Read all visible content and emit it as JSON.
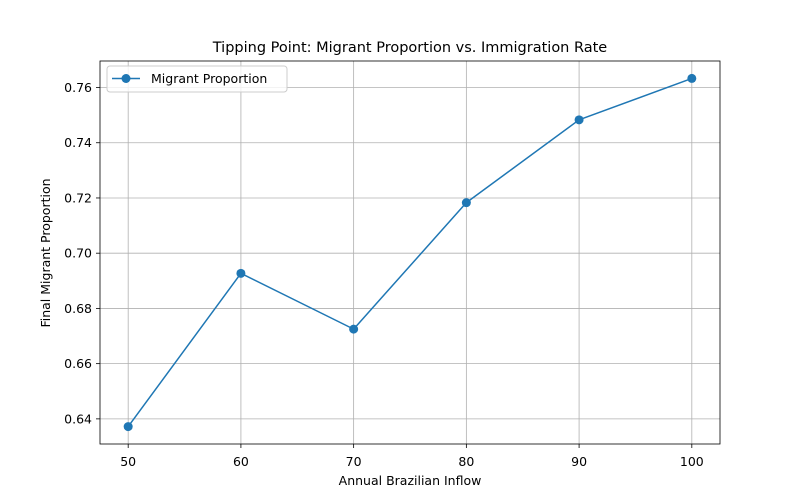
{
  "chart_data": {
    "type": "line",
    "title": "Tipping Point: Migrant Proportion vs. Immigration Rate",
    "xlabel": "Annual Brazilian Inflow",
    "ylabel": "Final Migrant Proportion",
    "x": [
      50,
      60,
      70,
      80,
      90,
      100
    ],
    "series": [
      {
        "name": "Migrant Proportion",
        "values": [
          0.6372,
          0.6927,
          0.6725,
          0.7183,
          0.7483,
          0.7633
        ],
        "color": "#1f77b4",
        "marker": "circle"
      }
    ],
    "xlim": [
      47.5,
      102.5
    ],
    "ylim": [
      0.6309,
      0.7696
    ],
    "x_ticks": [
      50,
      60,
      70,
      80,
      90,
      100
    ],
    "x_tick_labels": [
      "50",
      "60",
      "70",
      "80",
      "90",
      "100"
    ],
    "y_ticks": [
      0.64,
      0.66,
      0.68,
      0.7,
      0.72,
      0.74,
      0.76
    ],
    "y_tick_labels": [
      "0.64",
      "0.66",
      "0.68",
      "0.70",
      "0.72",
      "0.74",
      "0.76"
    ],
    "grid": true,
    "legend_position": "upper-left",
    "colors": {
      "grid": "#b0b0b0",
      "axes": "#000000",
      "background": "#ffffff"
    }
  }
}
